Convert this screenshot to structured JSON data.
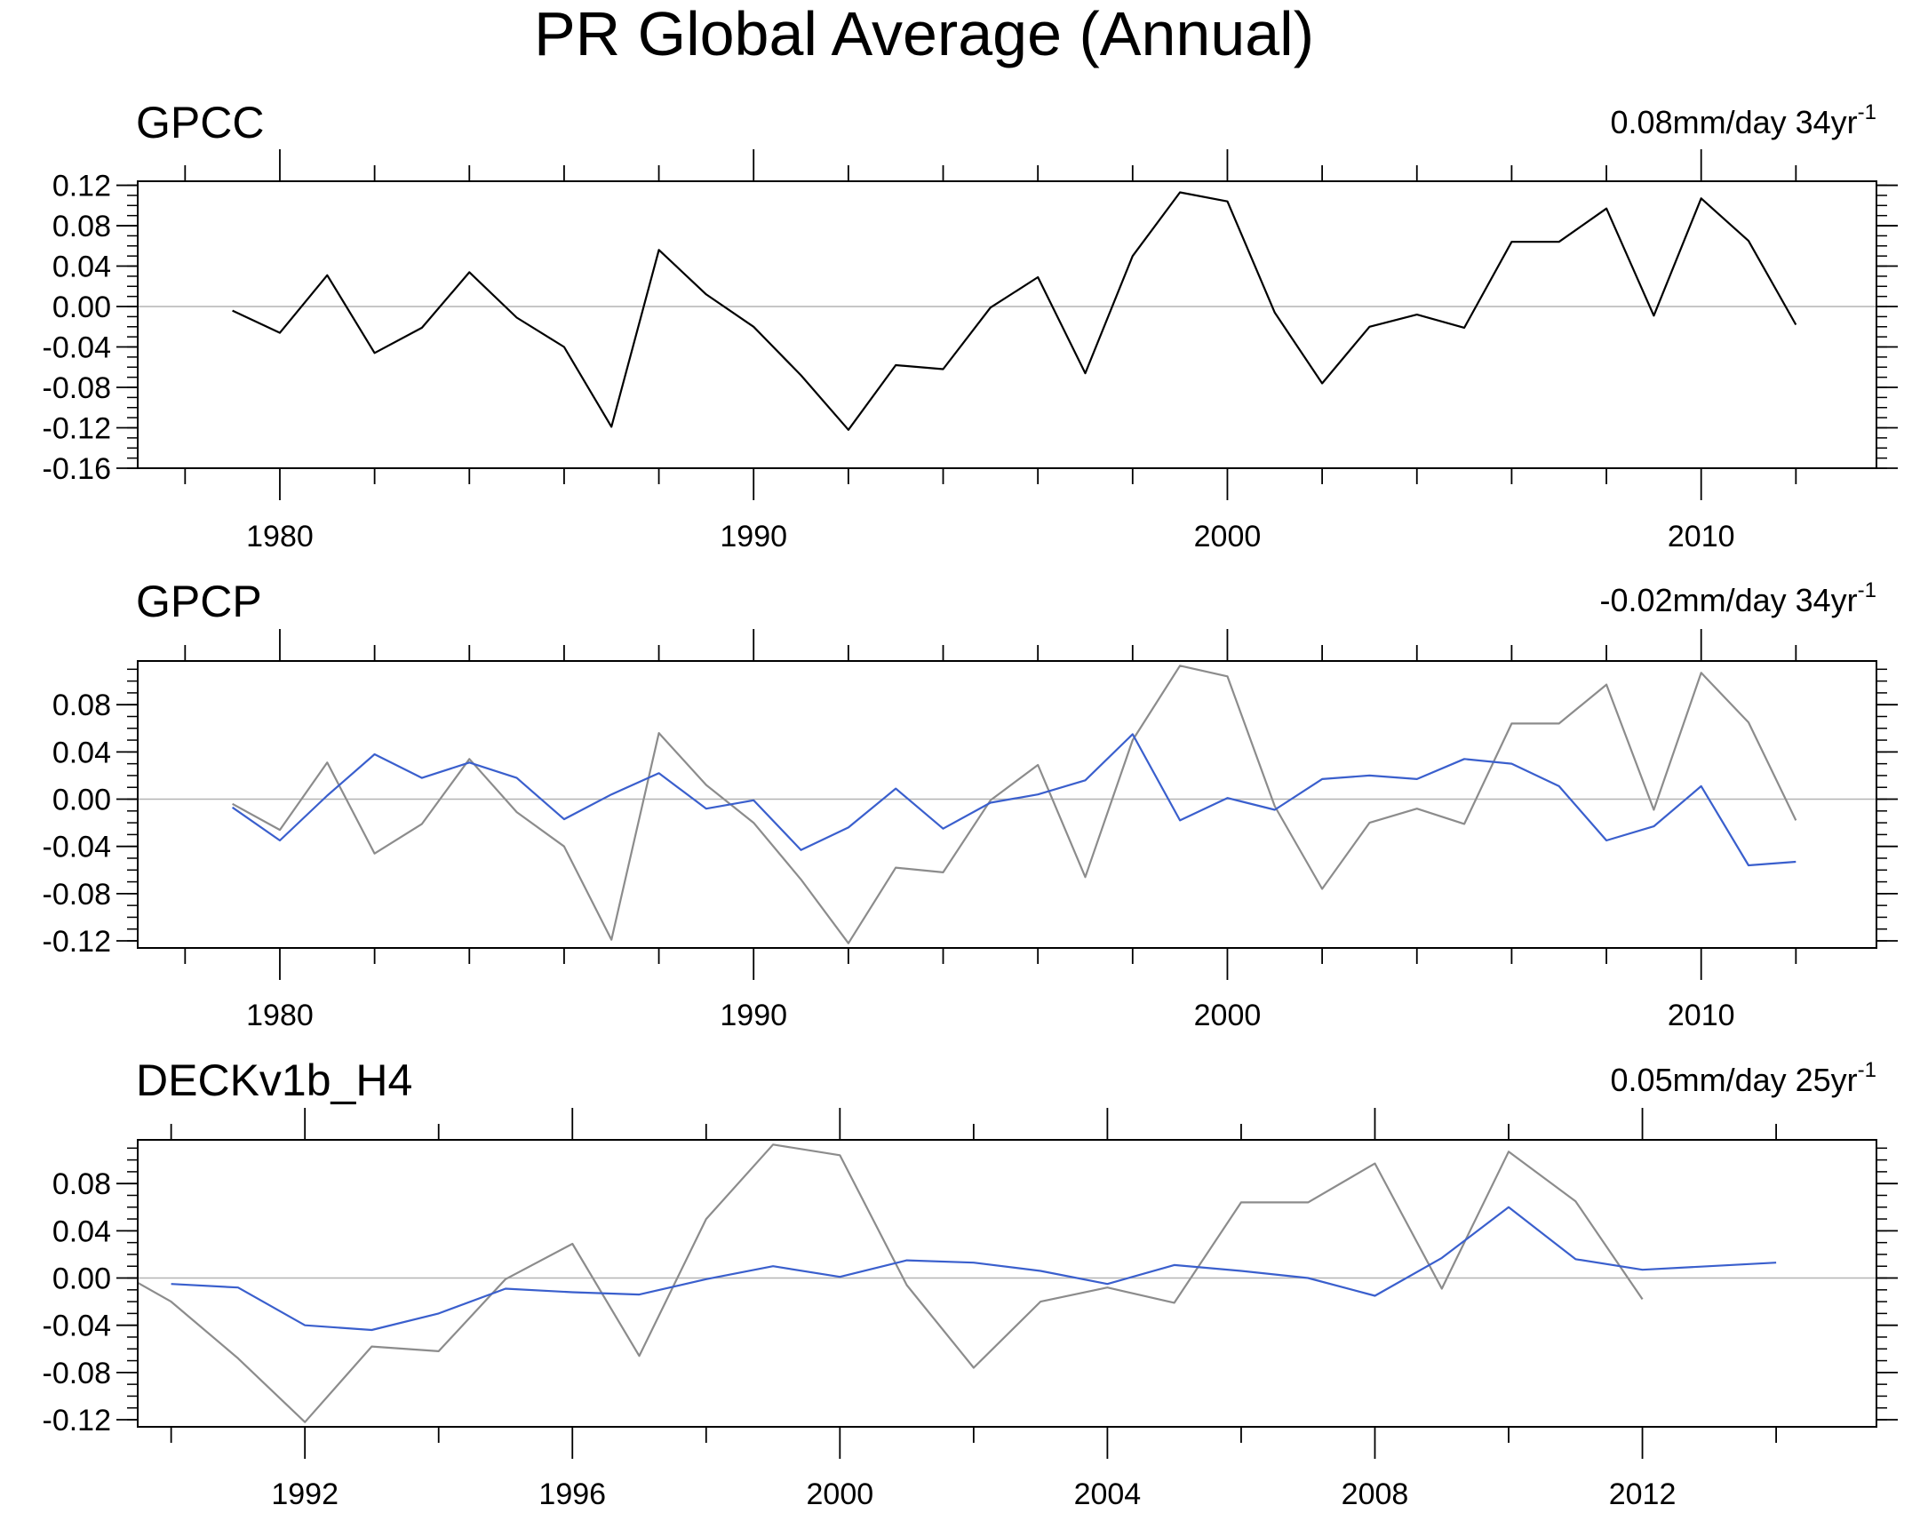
{
  "title": "PR Global Average (Annual)",
  "colors": {
    "primary": "#000000",
    "reference": "#8c8c8c",
    "model": "#3a5fcd",
    "zero": "#b4b4b4"
  },
  "chart_data": [
    {
      "type": "line",
      "name": "GPCC",
      "trend_text": "0.08mm/day 34yr",
      "trend_sup": "-1",
      "xlim": [
        1977.0,
        2013.7
      ],
      "ylim": [
        -0.16,
        0.124
      ],
      "yticks": [
        0.12,
        0.08,
        0.04,
        0.0,
        -0.04,
        -0.08,
        -0.12,
        -0.16
      ],
      "ytick_labels": [
        "0.12",
        "0.08",
        "0.04",
        "0.00",
        "-0.04",
        "-0.08",
        "-0.12",
        "-0.16"
      ],
      "xticks": [
        1980,
        1990,
        2000,
        2010
      ],
      "xtick_labels": [
        "1980",
        "1990",
        "2000",
        "2010"
      ],
      "series": [
        {
          "name": "GPCC",
          "role": "primary",
          "x": [
            1979,
            1980,
            1981,
            1982,
            1983,
            1984,
            1985,
            1986,
            1987,
            1988,
            1989,
            1990,
            1991,
            1992,
            1993,
            1994,
            1995,
            1996,
            1997,
            1998,
            1999,
            2000,
            2001,
            2002,
            2003,
            2004,
            2005,
            2006,
            2007,
            2008,
            2009,
            2010,
            2011,
            2012
          ],
          "values": [
            -0.004,
            -0.026,
            0.031,
            -0.046,
            -0.021,
            0.034,
            -0.011,
            -0.04,
            -0.119,
            0.056,
            0.012,
            -0.02,
            -0.068,
            -0.122,
            -0.058,
            -0.062,
            -0.001,
            0.029,
            -0.066,
            0.05,
            0.113,
            0.104,
            -0.006,
            -0.076,
            -0.02,
            -0.008,
            -0.021,
            0.064,
            0.064,
            0.097,
            -0.009,
            0.107,
            0.065,
            -0.018
          ]
        }
      ]
    },
    {
      "type": "line",
      "name": "GPCP",
      "trend_text": "-0.02mm/day 34yr",
      "trend_sup": "-1",
      "xlim": [
        1977.0,
        2013.7
      ],
      "ylim": [
        -0.126,
        0.117
      ],
      "yticks": [
        0.08,
        0.04,
        0.0,
        -0.04,
        -0.08,
        -0.12
      ],
      "ytick_labels": [
        "0.08",
        "0.04",
        "0.00",
        "-0.04",
        "-0.08",
        "-0.12"
      ],
      "xticks": [
        1980,
        1990,
        2000,
        2010
      ],
      "xtick_labels": [
        "1980",
        "1990",
        "2000",
        "2010"
      ],
      "series": [
        {
          "name": "GPCC",
          "role": "reference",
          "x": [
            1979,
            1980,
            1981,
            1982,
            1983,
            1984,
            1985,
            1986,
            1987,
            1988,
            1989,
            1990,
            1991,
            1992,
            1993,
            1994,
            1995,
            1996,
            1997,
            1998,
            1999,
            2000,
            2001,
            2002,
            2003,
            2004,
            2005,
            2006,
            2007,
            2008,
            2009,
            2010,
            2011,
            2012
          ],
          "values": [
            -0.004,
            -0.026,
            0.031,
            -0.046,
            -0.021,
            0.034,
            -0.011,
            -0.04,
            -0.119,
            0.056,
            0.012,
            -0.02,
            -0.068,
            -0.122,
            -0.058,
            -0.062,
            -0.001,
            0.029,
            -0.066,
            0.05,
            0.113,
            0.104,
            -0.006,
            -0.076,
            -0.02,
            -0.008,
            -0.021,
            0.064,
            0.064,
            0.097,
            -0.009,
            0.107,
            0.065,
            -0.018
          ]
        },
        {
          "name": "GPCP",
          "role": "model",
          "x": [
            1979,
            1980,
            1981,
            1982,
            1983,
            1984,
            1985,
            1986,
            1987,
            1988,
            1989,
            1990,
            1991,
            1992,
            1993,
            1994,
            1995,
            1996,
            1997,
            1998,
            1999,
            2000,
            2001,
            2002,
            2003,
            2004,
            2005,
            2006,
            2007,
            2008,
            2009,
            2010,
            2011,
            2012
          ],
          "values": [
            -0.007,
            -0.035,
            0.003,
            0.038,
            0.018,
            0.031,
            0.018,
            -0.017,
            0.004,
            0.022,
            -0.008,
            -0.001,
            -0.043,
            -0.024,
            0.009,
            -0.025,
            -0.003,
            0.004,
            0.016,
            0.055,
            -0.018,
            0.001,
            -0.009,
            0.017,
            0.02,
            0.017,
            0.034,
            0.03,
            0.011,
            -0.035,
            -0.023,
            0.011,
            -0.056,
            -0.053
          ]
        }
      ]
    },
    {
      "type": "line",
      "name": "DECKv1b_H4",
      "trend_text": "0.05mm/day 25yr",
      "trend_sup": "-1",
      "xlim": [
        1989.5,
        2015.5
      ],
      "ylim": [
        -0.126,
        0.117
      ],
      "yticks": [
        0.08,
        0.04,
        0.0,
        -0.04,
        -0.08,
        -0.12
      ],
      "ytick_labels": [
        "0.08",
        "0.04",
        "0.00",
        "-0.04",
        "-0.08",
        "-0.12"
      ],
      "xticks": [
        1992,
        1996,
        2000,
        2004,
        2008,
        2012
      ],
      "xtick_labels": [
        "1992",
        "1996",
        "2000",
        "2004",
        "2008",
        "2012"
      ],
      "series": [
        {
          "name": "GPCC",
          "role": "reference",
          "x": [
            1989.5,
            1990,
            1991,
            1992,
            1993,
            1994,
            1995,
            1996,
            1997,
            1998,
            1999,
            2000,
            2001,
            2002,
            2003,
            2004,
            2005,
            2006,
            2007,
            2008,
            2009,
            2010,
            2011,
            2012
          ],
          "values": [
            -0.004,
            -0.02,
            -0.068,
            -0.122,
            -0.058,
            -0.062,
            -0.001,
            0.029,
            -0.066,
            0.05,
            0.113,
            0.104,
            -0.006,
            -0.076,
            -0.02,
            -0.008,
            -0.021,
            0.064,
            0.064,
            0.097,
            -0.009,
            0.107,
            0.065,
            -0.018
          ]
        },
        {
          "name": "DECKv1b_H4",
          "role": "model",
          "x": [
            1990,
            1991,
            1992,
            1993,
            1994,
            1995,
            1996,
            1997,
            1998,
            1999,
            2000,
            2001,
            2002,
            2003,
            2004,
            2005,
            2006,
            2007,
            2008,
            2009,
            2010,
            2011,
            2012,
            2013,
            2014
          ],
          "values": [
            -0.005,
            -0.008,
            -0.04,
            -0.044,
            -0.03,
            -0.009,
            -0.012,
            -0.014,
            -0.001,
            0.01,
            0.001,
            0.015,
            0.013,
            0.006,
            -0.005,
            0.011,
            0.006,
            0.0,
            -0.015,
            0.017,
            0.06,
            0.016,
            0.007,
            0.01,
            0.013
          ]
        }
      ]
    }
  ]
}
